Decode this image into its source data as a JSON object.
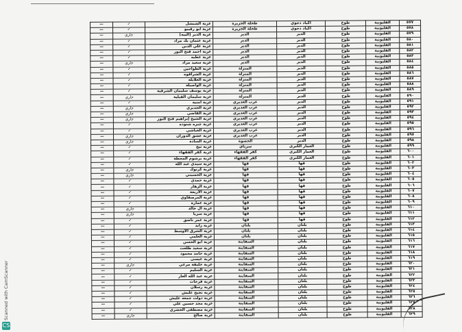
{
  "document": {
    "governorate": "القليوبية",
    "district": "طوخ",
    "check_mark": "✓",
    "dash": "—",
    "status_ongoing": "جاري",
    "scanner_label": "Scanned with CamScanner",
    "rows": [
      {
        "num": "٥٧٧",
        "unit": "أكياد دجوي",
        "village": "طحلة الجزيرة",
        "hamlet": "عزبة الشبشل",
        "status": "✓"
      },
      {
        "num": "٥٧٨",
        "unit": "أكياد دجوي",
        "village": "طحلة الجزيرة",
        "hamlet": "عزبة أبو رقيبو",
        "status": "✓"
      },
      {
        "num": "٥٧٩",
        "unit": "الدير",
        "village": "الدير",
        "hamlet": "عزبة الدير (البيه)",
        "status": "جاري"
      },
      {
        "num": "٥٨٠",
        "unit": "الدير",
        "village": "الدير",
        "hamlet": "عزبة عثمان بك مراد",
        "status": "✓"
      },
      {
        "num": "٥٨١",
        "unit": "الدير",
        "village": "الدير",
        "hamlet": "عزبة علي الدين",
        "status": "✓"
      },
      {
        "num": "٥٨٢",
        "unit": "الدير",
        "village": "الدير",
        "hamlet": "عزبة أحمد فتح النور",
        "status": "✓"
      },
      {
        "num": "٥٨٣",
        "unit": "الدير",
        "village": "الدير",
        "hamlet": "عزبة عطيه",
        "status": "✓"
      },
      {
        "num": "٥٨٤",
        "unit": "الدير",
        "village": "الدير",
        "hamlet": "عزبة سعيد مراد",
        "status": "جاري"
      },
      {
        "num": "٥٨٥",
        "unit": "الدير",
        "village": "المنزلة",
        "hamlet": "عزبة الطواحين",
        "status": "✓"
      },
      {
        "num": "٥٨٦",
        "unit": "الدير",
        "village": "المنزلة",
        "hamlet": "عزبة الشراقوه",
        "status": "✓"
      },
      {
        "num": "٥٨٧",
        "unit": "الدير",
        "village": "المنزلة",
        "hamlet": "عزبة العلايلة",
        "status": "✓"
      },
      {
        "num": "٥٨٨",
        "unit": "الدير",
        "village": "المنزلة",
        "hamlet": "عزبة الواصيلة",
        "status": "✓"
      },
      {
        "num": "٥٨٩",
        "unit": "الدير",
        "village": "المنزلة",
        "hamlet": "عزبة يوسف سليمان الشرقية",
        "status": "✓"
      },
      {
        "num": "٥٩٠",
        "unit": "الدير",
        "village": "المنزلة",
        "hamlet": "عزبة سليمان القبلية",
        "status": "جاري"
      },
      {
        "num": "٥٩١",
        "unit": "الدير",
        "village": "عرب الغديري",
        "hamlet": "عزبة أمنية",
        "status": "✓"
      },
      {
        "num": "٥٩٢",
        "unit": "الدير",
        "village": "عرب الغديري",
        "hamlet": "عزبة الجديري",
        "status": "جاري"
      },
      {
        "num": "٥٩٣",
        "unit": "الدير",
        "village": "عرب الغديري",
        "hamlet": "عزبة القاضي",
        "status": "جاري"
      },
      {
        "num": "٥٩٤",
        "unit": "الدير",
        "village": "عرب الغديري",
        "hamlet": "عزبة الشيخ إبراهيم فتح النور",
        "status": "جاري"
      },
      {
        "num": "٥٩٥",
        "unit": "الدير",
        "village": "عرب الغديري",
        "hamlet": "عزبة جبره شنوده",
        "status": "✓"
      },
      {
        "num": "٥٩٦",
        "unit": "الدير",
        "village": "عرب الغديري",
        "hamlet": "عزبة الغباشي",
        "status": "✓"
      },
      {
        "num": "٥٩٧",
        "unit": "الدير",
        "village": "عرب الغديري",
        "hamlet": "عزبة عشق الدوران",
        "status": "جاري"
      },
      {
        "num": "٥٩٨",
        "unit": "الدير",
        "village": "الحصوة",
        "hamlet": "عزبة السادة",
        "status": "جاري"
      },
      {
        "num": "٥٩٩",
        "unit": "العمار الكبرى",
        "village": "سرياي",
        "hamlet": "عزبة ثيج",
        "status": "✓"
      },
      {
        "num": "٦٠٠",
        "unit": "العمار الكبرى",
        "village": "كفر الفقهاء",
        "hamlet": "عزبة كفر الفقهاء",
        "status": "✓"
      },
      {
        "num": "٦٠١",
        "unit": "العمار الكبرى",
        "village": "كفر الفقهاء",
        "hamlet": "عزبة برشوم المحطة",
        "status": "✓"
      },
      {
        "num": "٦٠٢",
        "unit": "قها",
        "village": "قها",
        "hamlet": "عزبة سيدي عبد الله",
        "status": "✓"
      },
      {
        "num": "٦٠٣",
        "unit": "قها",
        "village": "قها",
        "hamlet": "عزبة كرتوك",
        "status": "جاري"
      },
      {
        "num": "٦٠٤",
        "unit": "قها",
        "village": "قها",
        "hamlet": "عزبة الحسيني",
        "status": "جاري"
      },
      {
        "num": "٦٠٥",
        "unit": "قها",
        "village": "قها",
        "hamlet": "عزبة حمدي",
        "status": "✓"
      },
      {
        "num": "٦٠٦",
        "unit": "قها",
        "village": "قها",
        "hamlet": "عزبة الزهار",
        "status": "✓"
      },
      {
        "num": "٦٠٧",
        "unit": "قها",
        "village": "قها",
        "hamlet": "عزبة الاربعة",
        "status": "✓"
      },
      {
        "num": "٦٠٨",
        "unit": "قها",
        "village": "قها",
        "hamlet": "عزبة المرصفاوي",
        "status": "✓"
      },
      {
        "num": "٦٠٩",
        "unit": "قها",
        "village": "قها",
        "hamlet": "عزبة عمارة",
        "status": "✓"
      },
      {
        "num": "٦١٠",
        "unit": "قها",
        "village": "قها",
        "hamlet": "عزبة آل خالد",
        "status": "جاري"
      },
      {
        "num": "٦١١",
        "unit": "قها",
        "village": "قها",
        "hamlet": "عزبة سريا",
        "status": "جاري"
      },
      {
        "num": "٦١٢",
        "unit": "قها",
        "village": "قها",
        "hamlet": "عزبة عمر ناصق",
        "status": "✓"
      },
      {
        "num": "٦١٣",
        "unit": "بلتان",
        "village": "بلتان",
        "hamlet": "عزبة زايد",
        "status": "✓"
      },
      {
        "num": "٦١٤",
        "unit": "بلتان",
        "village": "بلتان",
        "hamlet": "عزبة الشرق الأوسط",
        "status": "✓"
      },
      {
        "num": "٦١٥",
        "unit": "بلتان",
        "village": "بلتان",
        "hamlet": "عزبة العلمي",
        "status": "✓"
      },
      {
        "num": "٦١٦",
        "unit": "بلتان",
        "village": "السفاينة",
        "hamlet": "عزبة أبو الحسن",
        "status": "✓"
      },
      {
        "num": "٦١٧",
        "unit": "بلتان",
        "village": "السفاينة",
        "hamlet": "عزبة سعيد طلعت",
        "status": "✓"
      },
      {
        "num": "٦١٨",
        "unit": "بلتان",
        "village": "السفاينة",
        "hamlet": "عزبة حامد محمود",
        "status": "✓"
      },
      {
        "num": "٦١٩",
        "unit": "بلتان",
        "village": "السفاينة",
        "hamlet": "عزبة عيسى",
        "status": "✓"
      },
      {
        "num": "٦٢٠",
        "unit": "بلتان",
        "village": "السفاينة",
        "hamlet": "عزبة خليفة مرعي",
        "status": "جاري"
      },
      {
        "num": "٦٢١",
        "unit": "بلتان",
        "village": "السفاينة",
        "hamlet": "عزبة السليم",
        "status": "✓"
      },
      {
        "num": "٦٢٢",
        "unit": "بلتان",
        "village": "السفاينة",
        "hamlet": "عزبة عبد الله الغار",
        "status": "✓"
      },
      {
        "num": "٦٢٣",
        "unit": "بلتان",
        "village": "السفاينة",
        "hamlet": "عزبة فرحات",
        "status": "✓"
      },
      {
        "num": "٦٢٤",
        "unit": "بلتان",
        "village": "السفاينة",
        "hamlet": "عزبة رسلان",
        "status": "✓"
      },
      {
        "num": "٦٢٥",
        "unit": "بلتان",
        "village": "السفاينة",
        "hamlet": "عزبة نجيح عليش",
        "status": "✓"
      },
      {
        "num": "٦٢٦",
        "unit": "بلتان",
        "village": "السفاينة",
        "hamlet": "عزبة دولت جمعه عليش",
        "status": "✓"
      },
      {
        "num": "٦٢٧",
        "unit": "بلتان",
        "village": "السفاينة",
        "hamlet": "عزبة مجد حسين علي",
        "status": "✓"
      },
      {
        "num": "٦٢٨",
        "unit": "بلتان",
        "village": "السفاينة",
        "hamlet": "عزبة مصطفى الخضري",
        "status": "✓"
      },
      {
        "num": "٦٢٩",
        "unit": "بلتان",
        "village": "السفاينة",
        "hamlet": "عزبة صالح",
        "status": "جاري"
      }
    ]
  }
}
